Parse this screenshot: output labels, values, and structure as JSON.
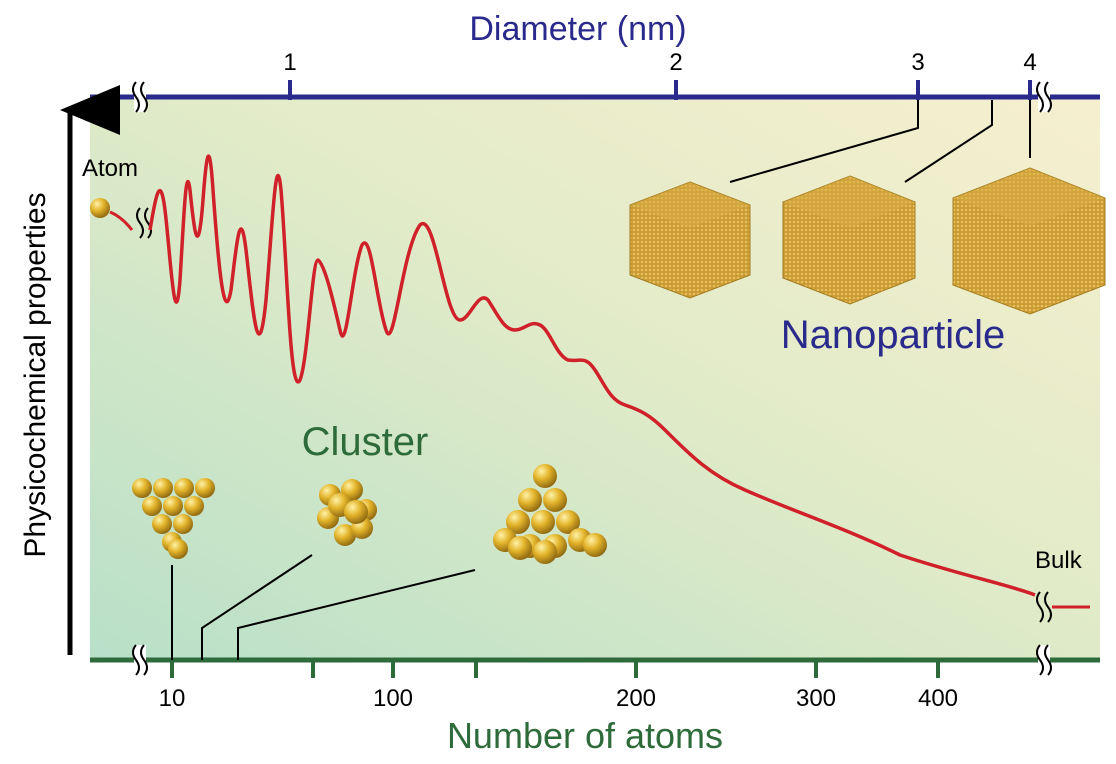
{
  "top_axis": {
    "title": "Diameter (nm)",
    "ticks": [
      "1",
      "2",
      "3",
      "4"
    ],
    "color": "#2a2a8c"
  },
  "bottom_axis": {
    "title": "Number of atoms",
    "ticks": [
      "10",
      "100",
      "200",
      "300",
      "400"
    ],
    "color": "#2e6b3a"
  },
  "y_axis": {
    "title": "Physicochemical properties"
  },
  "labels": {
    "atom": "Atom",
    "cluster": "Cluster",
    "nanoparticle": "Nanoparticle",
    "bulk": "Bulk"
  },
  "colors": {
    "curve": "#d0202a",
    "gold": "#d4a520",
    "background_left": "#bfe3cc",
    "background_right": "#f4efcc",
    "cluster_label": "#2e6b3a",
    "nanoparticle_label": "#2a2a8c"
  },
  "icons": [
    "atom-sphere-icon",
    "cluster-triangle-icon",
    "cluster-ball-icon",
    "cluster-pyramid-icon",
    "nanoparticle-hexagon-icon"
  ]
}
